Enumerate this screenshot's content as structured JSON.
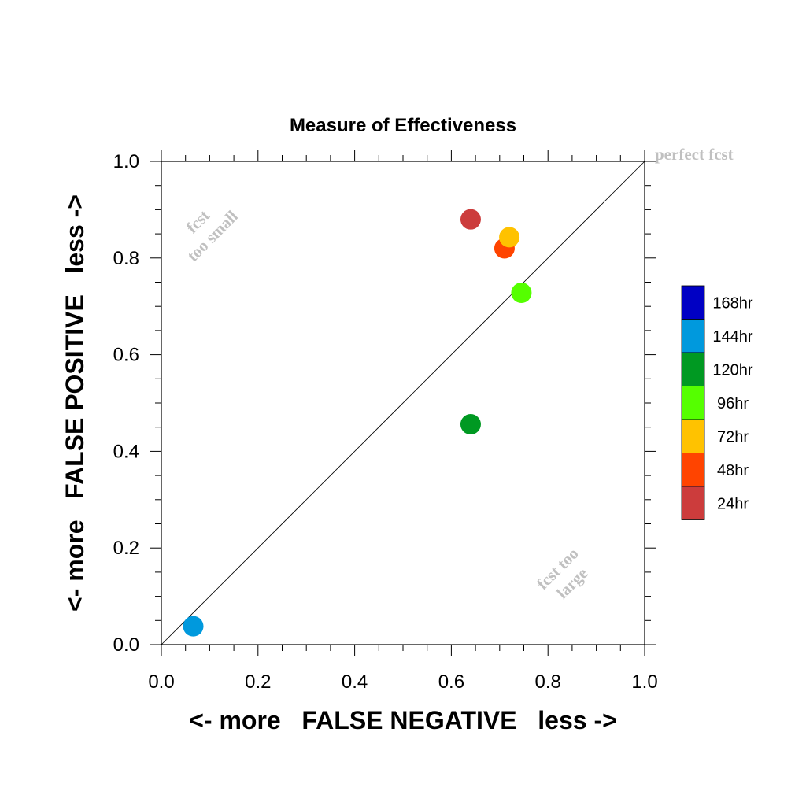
{
  "chart_data": {
    "type": "scatter",
    "title": "Measure of Effectiveness",
    "xlabel": "<- more   FALSE NEGATIVE   less ->",
    "ylabel": "<- more   FALSE POSITIVE   less ->",
    "xlim": [
      0.0,
      1.0
    ],
    "ylim": [
      0.0,
      1.0
    ],
    "xticks": [
      "0.0",
      "0.2",
      "0.4",
      "0.6",
      "0.8",
      "1.0"
    ],
    "yticks": [
      "0.0",
      "0.2",
      "0.4",
      "0.6",
      "0.8",
      "1.0"
    ],
    "grid": false,
    "reference_line": "diagonal y = x",
    "annotations": {
      "top_right": "perfect fcst",
      "upper_left": [
        "fcst",
        "too small"
      ],
      "lower_right": [
        "fcst too",
        "large"
      ]
    },
    "legend_position": "right",
    "legend": [
      {
        "label": "168hr",
        "color": "#0000c4"
      },
      {
        "label": "144hr",
        "color": "#0099dd"
      },
      {
        "label": "120hr",
        "color": "#009922"
      },
      {
        "label": "96hr",
        "color": "#55ff00"
      },
      {
        "label": "72hr",
        "color": "#ffc200"
      },
      {
        "label": "48hr",
        "color": "#ff4400"
      },
      {
        "label": "24hr",
        "color": "#cc3c3c"
      }
    ],
    "points": [
      {
        "lead": "24hr",
        "x": 0.64,
        "y": 0.88,
        "color": "#cc3c3c"
      },
      {
        "lead": "48hr",
        "x": 0.71,
        "y": 0.82,
        "color": "#ff4400"
      },
      {
        "lead": "72hr",
        "x": 0.72,
        "y": 0.843,
        "color": "#ffc200"
      },
      {
        "lead": "96hr",
        "x": 0.745,
        "y": 0.728,
        "color": "#55ff00"
      },
      {
        "lead": "120hr",
        "x": 0.64,
        "y": 0.456,
        "color": "#009922"
      },
      {
        "lead": "144hr",
        "x": 0.066,
        "y": 0.038,
        "color": "#0099dd"
      }
    ]
  }
}
